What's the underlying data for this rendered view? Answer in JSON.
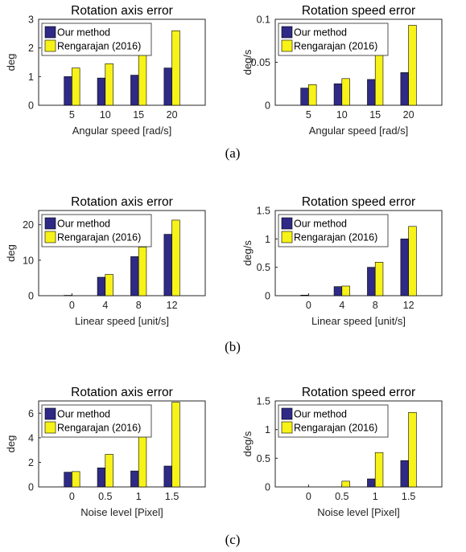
{
  "colors": {
    "our_method": "#2e2a85",
    "rengarajan": "#f7f218",
    "axis": "#262626"
  },
  "captions": [
    "(a)",
    "(b)",
    "(c)"
  ],
  "chart_data": [
    {
      "type": "bar",
      "title": "Rotation axis error",
      "xlabel": "Angular speed [rad/s]",
      "ylabel": "deg",
      "categories": [
        "5",
        "10",
        "15",
        "20"
      ],
      "ylim": [
        0,
        3
      ],
      "yticks": [
        "0",
        "1",
        "2",
        "3"
      ],
      "legend_position": "top-left",
      "series": [
        {
          "name": "Our method",
          "values": [
            1.0,
            0.95,
            1.05,
            1.3
          ]
        },
        {
          "name": "Rengarajan (2016)",
          "values": [
            1.3,
            1.45,
            1.9,
            2.6
          ]
        }
      ]
    },
    {
      "type": "bar",
      "title": "Rotation speed error",
      "xlabel": "Angular speed [rad/s]",
      "ylabel": "deg/s",
      "categories": [
        "5",
        "10",
        "15",
        "20"
      ],
      "ylim": [
        0,
        0.1
      ],
      "yticks": [
        "0",
        "0.05",
        "0.1"
      ],
      "legend_position": "top-left",
      "series": [
        {
          "name": "Our method",
          "values": [
            0.02,
            0.025,
            0.03,
            0.038
          ]
        },
        {
          "name": "Rengarajan (2016)",
          "values": [
            0.024,
            0.031,
            0.06,
            0.093
          ]
        }
      ]
    },
    {
      "type": "bar",
      "title": "Rotation axis error",
      "xlabel": "Linear speed [unit/s]",
      "ylabel": "deg",
      "categories": [
        "0",
        "4",
        "8",
        "12"
      ],
      "ylim": [
        0,
        24
      ],
      "yticks": [
        "0",
        "10",
        "20"
      ],
      "legend_position": "top-left",
      "series": [
        {
          "name": "Our method",
          "values": [
            0.1,
            5.2,
            11.0,
            17.3
          ]
        },
        {
          "name": "Rengarajan (2016)",
          "values": [
            0.0,
            6.0,
            13.7,
            21.3
          ]
        }
      ]
    },
    {
      "type": "bar",
      "title": "Rotation speed error",
      "xlabel": "Linear speed [unit/s]",
      "ylabel": "deg/s",
      "categories": [
        "0",
        "4",
        "8",
        "12"
      ],
      "ylim": [
        0,
        1.5
      ],
      "yticks": [
        "0",
        "0.5",
        "1",
        "1.5"
      ],
      "legend_position": "top-left",
      "series": [
        {
          "name": "Our method",
          "values": [
            0.01,
            0.16,
            0.5,
            1.0
          ]
        },
        {
          "name": "Rengarajan (2016)",
          "values": [
            0.0,
            0.17,
            0.59,
            1.22
          ]
        }
      ]
    },
    {
      "type": "bar",
      "title": "Rotation axis error",
      "xlabel": "Noise level [Pixel]",
      "ylabel": "deg",
      "categories": [
        "0",
        "0.5",
        "1",
        "1.5"
      ],
      "ylim": [
        0,
        7
      ],
      "yticks": [
        "0",
        "2",
        "4",
        "6"
      ],
      "legend_position": "top-left",
      "series": [
        {
          "name": "Our method",
          "values": [
            1.2,
            1.55,
            1.3,
            1.7
          ]
        },
        {
          "name": "Rengarajan (2016)",
          "values": [
            1.25,
            2.65,
            4.6,
            6.9
          ]
        }
      ]
    },
    {
      "type": "bar",
      "title": "Rotation speed error",
      "xlabel": "Noise level [Pixel]",
      "ylabel": "deg/s",
      "categories": [
        "0",
        "0.5",
        "1",
        "1.5"
      ],
      "ylim": [
        0,
        1.5
      ],
      "yticks": [
        "0",
        "0.5",
        "1",
        "1.5"
      ],
      "legend_position": "top-left",
      "series": [
        {
          "name": "Our method",
          "values": [
            0.0,
            0.0,
            0.14,
            0.46
          ]
        },
        {
          "name": "Rengarajan (2016)",
          "values": [
            0.0,
            0.1,
            0.6,
            1.3
          ]
        }
      ]
    }
  ]
}
